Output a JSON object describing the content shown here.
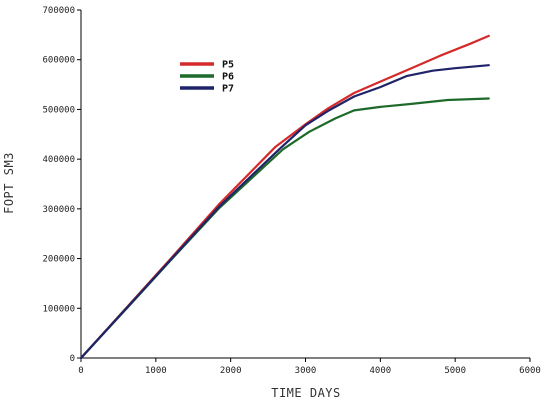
{
  "chart_data": {
    "type": "line",
    "title": "",
    "xlabel": "TIME DAYS",
    "ylabel": "FOPT SM3",
    "xlim": [
      0,
      6000
    ],
    "ylim": [
      0,
      700000
    ],
    "xticks": [
      0,
      1000,
      2000,
      3000,
      4000,
      5000,
      6000
    ],
    "yticks": [
      0,
      100000,
      200000,
      300000,
      400000,
      500000,
      600000,
      700000
    ],
    "xtick_labels": [
      "0",
      "1000",
      "2000",
      "3000",
      "4000",
      "5000",
      "6000"
    ],
    "ytick_labels": [
      "0",
      "100000",
      "200000",
      "300000",
      "400000",
      "500000",
      "600000",
      "700000"
    ],
    "grid": false,
    "legend_position": "top-left",
    "series": [
      {
        "name": "P5",
        "color": "#d42a2a",
        "x": [
          0,
          600,
          1200,
          1850,
          2600,
          3000,
          3300,
          3650,
          4000,
          4400,
          4800,
          5200,
          5450
        ],
        "y": [
          0,
          100000,
          200000,
          310000,
          425000,
          470000,
          502000,
          533000,
          556000,
          582000,
          608000,
          632000,
          648000
        ]
      },
      {
        "name": "P6",
        "color": "#1e6a2a",
        "x": [
          0,
          600,
          1200,
          1850,
          2700,
          3050,
          3400,
          3650,
          4000,
          4400,
          4900,
          5450
        ],
        "y": [
          0,
          98000,
          197000,
          302000,
          420000,
          455000,
          482000,
          498000,
          505000,
          511000,
          519000,
          522000
        ]
      },
      {
        "name": "P7",
        "color": "#1f2368",
        "x": [
          0,
          600,
          1200,
          1850,
          2650,
          3000,
          3300,
          3650,
          4000,
          4350,
          4700,
          5000,
          5450
        ],
        "y": [
          0,
          99000,
          198000,
          305000,
          420000,
          468000,
          497000,
          526000,
          545000,
          567000,
          578000,
          583000,
          589000
        ]
      }
    ]
  }
}
